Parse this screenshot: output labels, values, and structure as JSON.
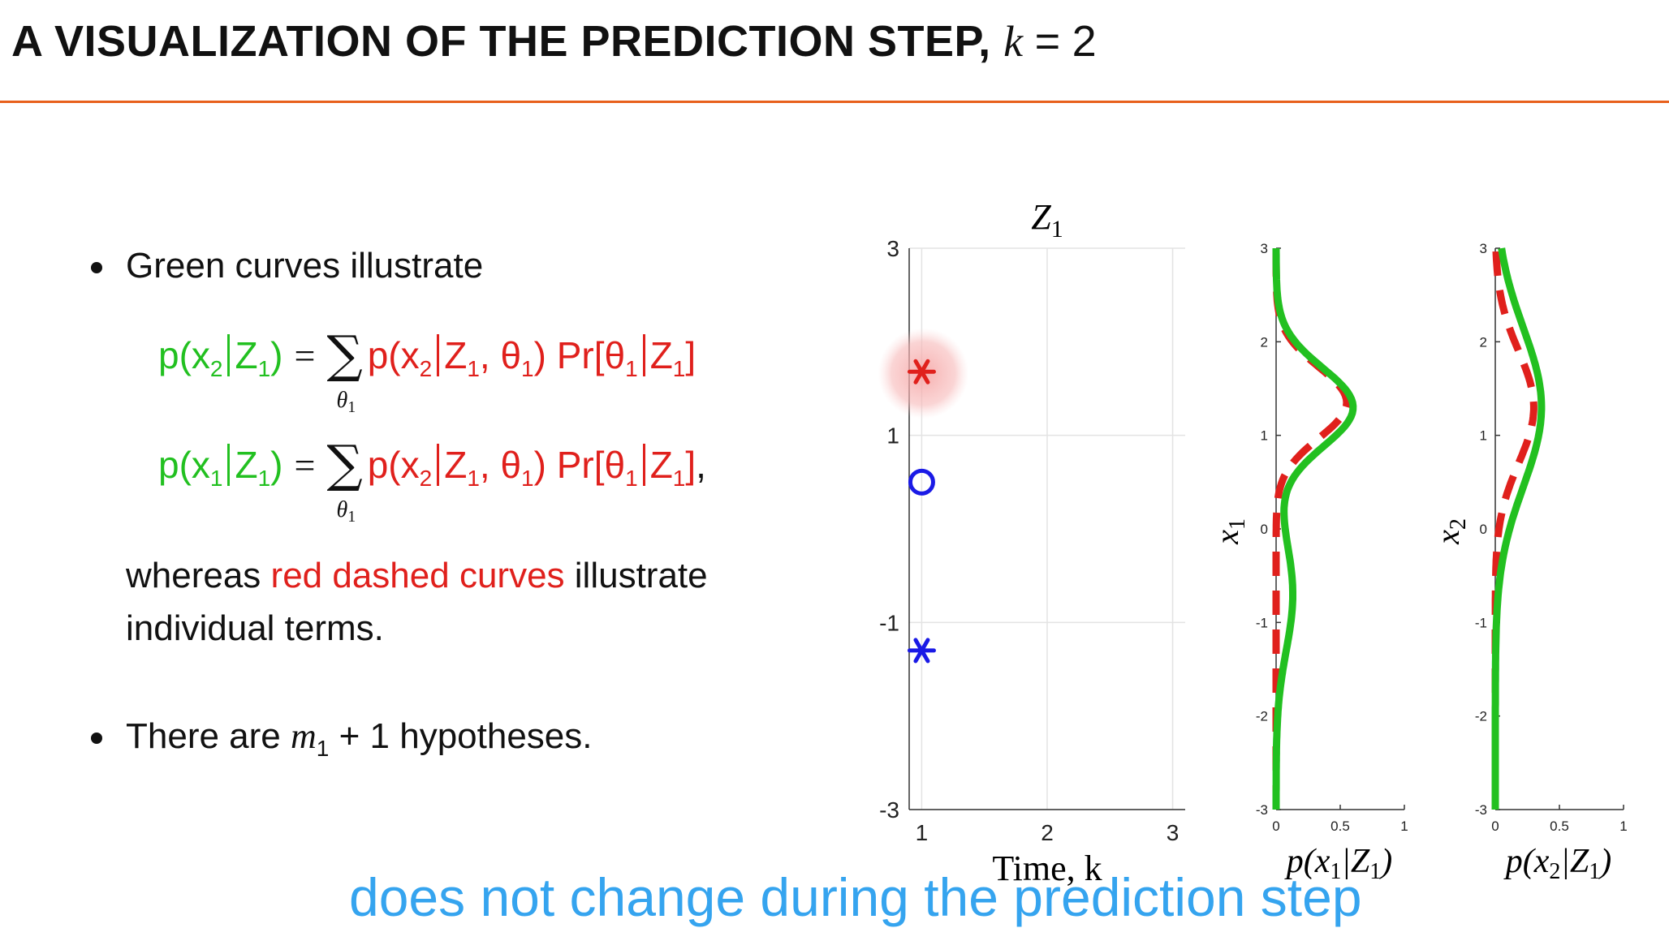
{
  "slide": {
    "title_text": "A VISUALIZATION OF THE PREDICTION STEP,",
    "title_var": "k",
    "title_eq": "=",
    "title_value": "2"
  },
  "bullets": {
    "b1_text": "Green curves illustrate",
    "whereas_a": "whereas",
    "whereas_red": "red dashed curves",
    "whereas_b": "illustrate",
    "whereas_line2": "individual terms.",
    "b2_a": "There are",
    "b2_var": "m",
    "b2_sub": "1",
    "b2_plus": "+ 1",
    "b2_b": "hypotheses."
  },
  "equations": {
    "eq1": {
      "lhs_p": "p(x",
      "lhs_sub": "2",
      "lhs_given": "Z",
      "lhs_gsub": "1",
      "close": ")",
      "rhs_p": "p(x",
      "rhs_sub": "2",
      "rhs_z": "Z",
      "rhs_zsub": "1",
      "rhs_theta": ", θ",
      "rhs_tsub": "1",
      "pr": "Pr[θ",
      "pr_sub": "1",
      "pr_z": "Z",
      "pr_zsub": "1",
      "pr_close": "]",
      "sum_sub": "θ",
      "sum_subsub": "1",
      "trail": ""
    },
    "eq2": {
      "lhs_p": "p(x",
      "lhs_sub": "1",
      "lhs_given": "Z",
      "lhs_gsub": "1",
      "close": ")",
      "rhs_p": "p(x",
      "rhs_sub": "2",
      "rhs_z": "Z",
      "rhs_zsub": "1",
      "rhs_theta": ", θ",
      "rhs_tsub": "1",
      "pr": "Pr[θ",
      "pr_sub": "1",
      "pr_z": "Z",
      "pr_zsub": "1",
      "pr_close": "]",
      "sum_sub": "θ",
      "sum_subsub": "1",
      "trail": ","
    }
  },
  "caption": "does not change during the prediction step",
  "colors": {
    "green": "#22c020",
    "red": "#e0201c",
    "blue": "#1a1ae6",
    "accent_rule": "#e8601c",
    "caption": "#35a4ef"
  },
  "chart_data": [
    {
      "type": "scatter",
      "title": "Z",
      "title_sub": "1",
      "xlabel": "Time, k",
      "xlim": [
        0.9,
        3.1
      ],
      "ylim": [
        -3,
        3
      ],
      "xticks": [
        1,
        2,
        3
      ],
      "yticks": [
        -3,
        -1,
        1,
        3
      ],
      "grid": true,
      "series": [
        {
          "marker": "asterisk",
          "color": "#e0201c",
          "highlighted": true,
          "x": 1,
          "y": 1.68
        },
        {
          "marker": "circle",
          "color": "#1a1ae6",
          "x": 1,
          "y": 0.5
        },
        {
          "marker": "asterisk",
          "color": "#1a1ae6",
          "x": 1,
          "y": -1.3
        }
      ]
    },
    {
      "type": "line",
      "ylabel": "x",
      "ylabel_sub": "1",
      "xlabel": "p(x1|Z1)",
      "xlabel_main": "p(x",
      "xlabel_s1": "1",
      "xlabel_mid": "|Z",
      "xlabel_s2": "1",
      "xlabel_end": ")",
      "xlim": [
        0,
        1
      ],
      "ylim": [
        -3,
        3
      ],
      "xticks": [
        0,
        0.5,
        1
      ],
      "yticks": [
        -3,
        -2,
        -1,
        0,
        1,
        2,
        3
      ],
      "series": [
        {
          "style": "solid",
          "color": "#22c020",
          "mean": 1.3,
          "sd": 0.42,
          "amp": 0.6,
          "mean2": -0.7,
          "sd2": 0.6,
          "amp2": 0.13
        },
        {
          "style": "dashed",
          "color": "#e0201c",
          "mean": 1.35,
          "sd": 0.38,
          "amp": 0.55
        }
      ]
    },
    {
      "type": "line",
      "ylabel": "x",
      "ylabel_sub": "2",
      "xlabel": "p(x2|Z1)",
      "xlabel_main": "p(x",
      "xlabel_s1": "2",
      "xlabel_mid": "|Z",
      "xlabel_s2": "1",
      "xlabel_end": ")",
      "xlim": [
        0,
        1
      ],
      "ylim": [
        -3,
        3
      ],
      "xticks": [
        0,
        0.5,
        1
      ],
      "yticks": [
        -3,
        -2,
        -1,
        0,
        1,
        2,
        3
      ],
      "series": [
        {
          "style": "solid",
          "color": "#22c020",
          "mean": 1.3,
          "sd": 0.85,
          "amp": 0.36
        },
        {
          "style": "dashed",
          "color": "#e0201c",
          "mean": 1.3,
          "sd": 0.6,
          "amp": 0.3
        }
      ]
    }
  ]
}
